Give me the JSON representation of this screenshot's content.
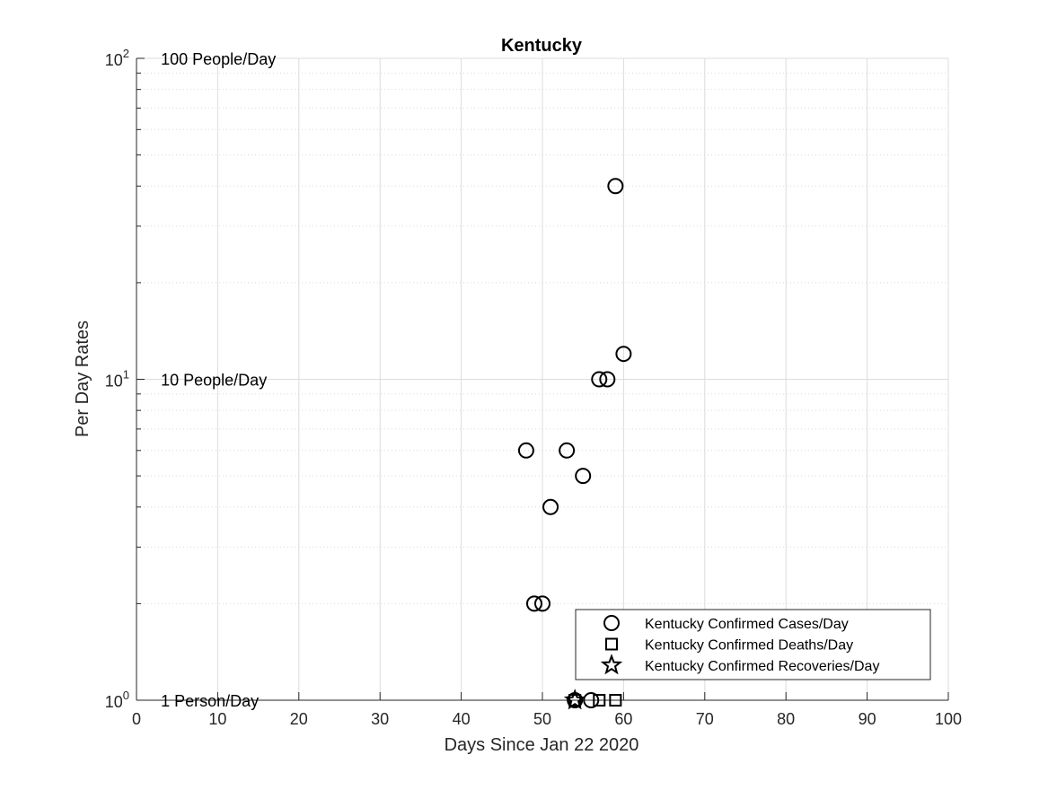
{
  "chart_data": {
    "type": "scatter",
    "title": "Kentucky",
    "xlabel": "Days Since Jan 22 2020",
    "ylabel": "Per Day Rates",
    "xlim": [
      0,
      100
    ],
    "ylim": [
      1,
      100
    ],
    "yscale": "log",
    "grid": true,
    "legend_position": "bottom-right",
    "x_ticks": [
      {
        "value": 0,
        "label": "0"
      },
      {
        "value": 10,
        "label": "10"
      },
      {
        "value": 20,
        "label": "20"
      },
      {
        "value": 30,
        "label": "30"
      },
      {
        "value": 40,
        "label": "40"
      },
      {
        "value": 50,
        "label": "50"
      },
      {
        "value": 60,
        "label": "60"
      },
      {
        "value": 70,
        "label": "70"
      },
      {
        "value": 80,
        "label": "80"
      },
      {
        "value": 90,
        "label": "90"
      },
      {
        "value": 100,
        "label": "100"
      }
    ],
    "y_ticks": [
      {
        "value": 1,
        "base": "10",
        "exp": "0"
      },
      {
        "value": 10,
        "base": "10",
        "exp": "1"
      },
      {
        "value": 100,
        "base": "10",
        "exp": "2"
      }
    ],
    "annotations": [
      {
        "x": 3,
        "y": 100,
        "text": "100 People/Day"
      },
      {
        "x": 3,
        "y": 10,
        "text": "10 People/Day"
      },
      {
        "x": 3,
        "y": 1,
        "text": "1 Person/Day"
      }
    ],
    "series": [
      {
        "name": "Kentucky Confirmed Cases/Day",
        "marker": "circle",
        "points": [
          {
            "x": 48,
            "y": 6
          },
          {
            "x": 49,
            "y": 2
          },
          {
            "x": 50,
            "y": 2
          },
          {
            "x": 51,
            "y": 4
          },
          {
            "x": 53,
            "y": 6
          },
          {
            "x": 54,
            "y": 1
          },
          {
            "x": 55,
            "y": 5
          },
          {
            "x": 56,
            "y": 1
          },
          {
            "x": 57,
            "y": 10
          },
          {
            "x": 58,
            "y": 10
          },
          {
            "x": 59,
            "y": 40
          },
          {
            "x": 60,
            "y": 12
          }
        ]
      },
      {
        "name": "Kentucky Confirmed Deaths/Day",
        "marker": "square",
        "points": [
          {
            "x": 54,
            "y": 1
          },
          {
            "x": 57,
            "y": 1
          },
          {
            "x": 59,
            "y": 1
          }
        ]
      },
      {
        "name": "Kentucky Confirmed Recoveries/Day",
        "marker": "star",
        "points": [
          {
            "x": 54,
            "y": 1
          }
        ]
      }
    ]
  }
}
